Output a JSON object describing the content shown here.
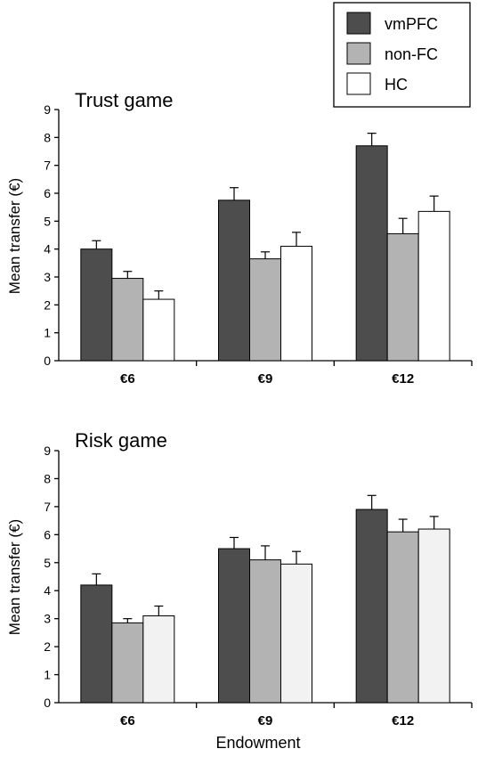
{
  "legend": {
    "items": [
      {
        "label": "vmPFC",
        "color": "#4d4d4d"
      },
      {
        "label": "non-FC",
        "color": "#b3b3b3"
      },
      {
        "label": "HC",
        "color": "#ffffff"
      }
    ]
  },
  "xlabel": "Endowment",
  "chart_data": [
    {
      "type": "bar",
      "title": "Trust game",
      "ylabel": "Mean transfer (€)",
      "ylim": [
        0,
        9
      ],
      "yticks": [
        0,
        1,
        2,
        3,
        4,
        5,
        6,
        7,
        8,
        9
      ],
      "categories": [
        "€6",
        "€9",
        "€12"
      ],
      "series": [
        {
          "name": "vmPFC",
          "color": "#4d4d4d",
          "values": [
            4.0,
            5.75,
            7.7
          ],
          "errors": [
            0.3,
            0.45,
            0.45
          ]
        },
        {
          "name": "non-FC",
          "color": "#b3b3b3",
          "values": [
            2.95,
            3.65,
            4.55
          ],
          "errors": [
            0.25,
            0.25,
            0.55
          ]
        },
        {
          "name": "HC",
          "color": "#ffffff",
          "values": [
            2.2,
            4.1,
            5.35
          ],
          "errors": [
            0.3,
            0.5,
            0.55
          ]
        }
      ]
    },
    {
      "type": "bar",
      "title": "Risk game",
      "ylabel": "Mean transfer (€)",
      "xlabel": "Endowment",
      "ylim": [
        0,
        9
      ],
      "yticks": [
        0,
        1,
        2,
        3,
        4,
        5,
        6,
        7,
        8,
        9
      ],
      "categories": [
        "€6",
        "€9",
        "€12"
      ],
      "series": [
        {
          "name": "vmPFC",
          "color": "#4d4d4d",
          "values": [
            4.2,
            5.5,
            6.9
          ],
          "errors": [
            0.4,
            0.4,
            0.5
          ]
        },
        {
          "name": "non-FC",
          "color": "#b3b3b3",
          "values": [
            2.85,
            5.1,
            6.1
          ],
          "errors": [
            0.15,
            0.5,
            0.45
          ]
        },
        {
          "name": "HC",
          "color": "#f2f2f2",
          "values": [
            3.1,
            4.95,
            6.2
          ],
          "errors": [
            0.35,
            0.45,
            0.45
          ]
        }
      ]
    }
  ]
}
